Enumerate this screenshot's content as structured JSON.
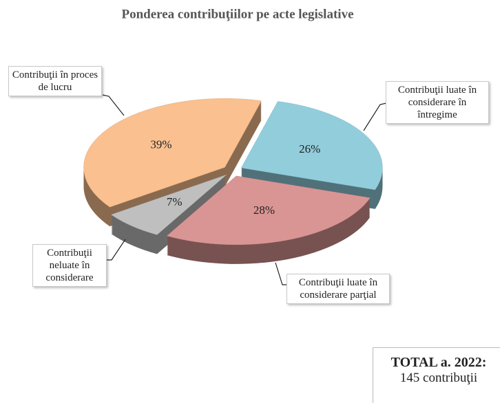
{
  "chart_data": {
    "type": "pie3d",
    "title": "Ponderea contribuţiilor pe acte legislative",
    "categories": [
      "Contribuţii luate în considerare în întregime",
      "Contribuţii luate în considerare parţial",
      "Contribuţii neluate în considerare",
      "Contribuţii în proces de lucru"
    ],
    "values": [
      26,
      28,
      7,
      39
    ],
    "value_labels": [
      "26%",
      "28%",
      "7%",
      "39%"
    ],
    "colors": [
      "#92cddc",
      "#d99594",
      "#bfbfbf",
      "#fac090"
    ],
    "total": {
      "label": "TOTAL a. 2022:",
      "value": "145 contribuţii"
    }
  }
}
